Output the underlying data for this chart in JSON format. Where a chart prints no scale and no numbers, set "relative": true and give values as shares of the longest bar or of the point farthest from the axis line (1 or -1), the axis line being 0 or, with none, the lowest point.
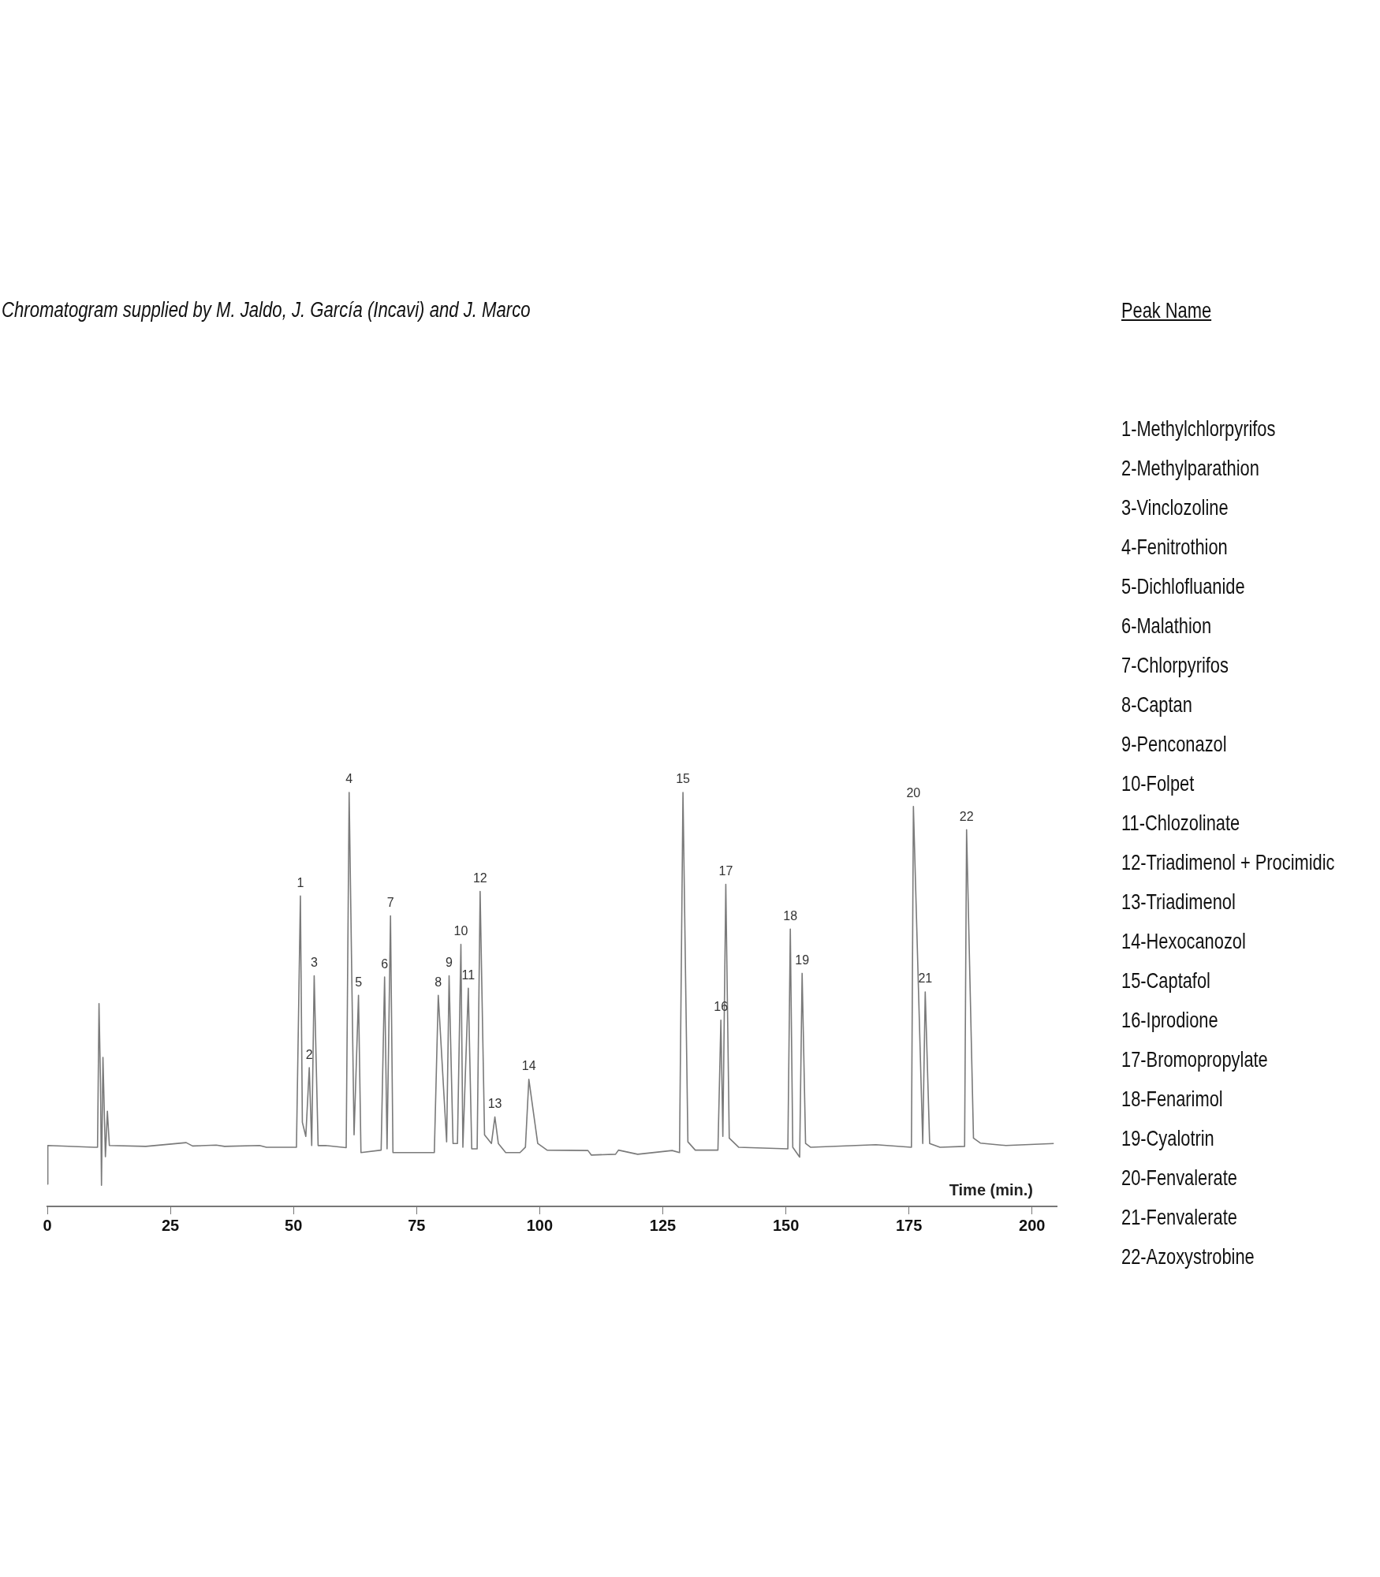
{
  "chart_data": {
    "type": "line",
    "relative": true,
    "title": "Chromatogram supplied by M. Jaldo, J. García (Incavi) and J. Marco",
    "xlabel": "Time (min.)",
    "xlim": [
      0,
      205
    ],
    "xticks": [
      0,
      25,
      50,
      75,
      100,
      125,
      150,
      175,
      200
    ],
    "marker": "none",
    "legend": false,
    "series": [
      {
        "color": "#7a7a7a",
        "x": [
          0,
          0.1,
          9.5,
          10.2,
          10.5,
          10.8,
          11.0,
          11.3,
          11.8,
          12.2,
          12.6,
          20,
          28.2,
          29.5,
          34.3,
          36,
          43.1,
          44.5,
          50.6,
          51.4,
          51.8,
          52.5,
          53.2,
          53.7,
          54.2,
          55.0,
          56.5,
          60.7,
          61.3,
          62.3,
          63.2,
          63.7,
          67.8,
          68.5,
          69.0,
          69.7,
          70.2,
          78.6,
          79.4,
          81.1,
          81.6,
          82.4,
          83.3,
          84.0,
          84.4,
          85.5,
          86.2,
          87.3,
          87.9,
          88.8,
          90.2,
          90.9,
          91.6,
          93.1,
          96.0,
          97.1,
          97.8,
          99.6,
          101.5,
          109.8,
          110.5,
          115.4,
          116.0,
          119.9,
          126.9,
          128.4,
          129.1,
          130.1,
          131.6,
          136.2,
          136.8,
          137.2,
          137.8,
          138.5,
          140.4,
          150.4,
          150.9,
          151.4,
          152.8,
          153.3,
          154.0,
          155.0,
          168.3,
          175.5,
          175.9,
          177.8,
          178.3,
          179.2,
          181.3,
          186.3,
          186.7,
          188.1,
          189.5,
          194.7,
          204.4
        ],
        "values": [
          0.054,
          0.147,
          0.143,
          0.143,
          0.49,
          0.3,
          0.051,
          0.36,
          0.12,
          0.23,
          0.147,
          0.145,
          0.154,
          0.146,
          0.148,
          0.145,
          0.147,
          0.143,
          0.143,
          0.75,
          0.203,
          0.169,
          0.335,
          0.147,
          0.557,
          0.147,
          0.147,
          0.142,
          1.0,
          0.173,
          0.51,
          0.13,
          0.136,
          0.554,
          0.139,
          0.702,
          0.13,
          0.13,
          0.51,
          0.156,
          0.557,
          0.152,
          0.152,
          0.633,
          0.143,
          0.527,
          0.139,
          0.139,
          0.761,
          0.173,
          0.152,
          0.216,
          0.152,
          0.13,
          0.13,
          0.143,
          0.307,
          0.152,
          0.136,
          0.135,
          0.124,
          0.126,
          0.136,
          0.126,
          0.135,
          0.13,
          1.0,
          0.156,
          0.136,
          0.136,
          0.45,
          0.169,
          0.778,
          0.165,
          0.143,
          0.139,
          0.67,
          0.143,
          0.119,
          0.563,
          0.152,
          0.143,
          0.149,
          0.143,
          0.966,
          0.152,
          0.518,
          0.152,
          0.143,
          0.145,
          0.91,
          0.165,
          0.153,
          0.147,
          0.152
        ]
      }
    ],
    "annotations": [
      {
        "text": "1",
        "x": 51.4,
        "y": 0.75
      },
      {
        "text": "2",
        "x": 53.2,
        "y": 0.335
      },
      {
        "text": "3",
        "x": 54.2,
        "y": 0.557
      },
      {
        "text": "4",
        "x": 61.3,
        "y": 1.0
      },
      {
        "text": "5",
        "x": 63.2,
        "y": 0.51
      },
      {
        "text": "6",
        "x": 68.5,
        "y": 0.554
      },
      {
        "text": "7",
        "x": 69.7,
        "y": 0.702
      },
      {
        "text": "8",
        "x": 79.4,
        "y": 0.51
      },
      {
        "text": "9",
        "x": 81.6,
        "y": 0.557
      },
      {
        "text": "10",
        "x": 84.0,
        "y": 0.633
      },
      {
        "text": "11",
        "x": 85.5,
        "y": 0.527
      },
      {
        "text": "12",
        "x": 87.9,
        "y": 0.761
      },
      {
        "text": "13",
        "x": 90.9,
        "y": 0.216
      },
      {
        "text": "14",
        "x": 97.8,
        "y": 0.307
      },
      {
        "text": "15",
        "x": 129.1,
        "y": 1.0
      },
      {
        "text": "16",
        "x": 136.8,
        "y": 0.45
      },
      {
        "text": "17",
        "x": 137.8,
        "y": 0.778
      },
      {
        "text": "18",
        "x": 150.9,
        "y": 0.67
      },
      {
        "text": "19",
        "x": 153.3,
        "y": 0.563
      },
      {
        "text": "20",
        "x": 175.9,
        "y": 0.966
      },
      {
        "text": "21",
        "x": 178.3,
        "y": 0.518
      },
      {
        "text": "22",
        "x": 186.7,
        "y": 0.91
      },
      "Peak Name",
      "1-Methylchlorpyrifos",
      "2-Methylparathion",
      "3-Vinclozoline",
      "4-Fenitrothion",
      "5-Dichlofluanide",
      "6-Malathion",
      "7-Chlorpyrifos",
      "8-Captan",
      "9-Penconazol",
      "10-Folpet",
      "11-Chlozolinate",
      "12-Triadimenol + Procimidic",
      "13-Triadimenol",
      "14-Hexocanozol",
      "15-Captafol",
      "16-Iprodione",
      "17-Bromopropylate",
      "18-Fenarimol",
      "19-Cyalotrin",
      "20-Fenvalerate",
      "21-Fenvalerate",
      "22-Azoxystrobine"
    ]
  }
}
